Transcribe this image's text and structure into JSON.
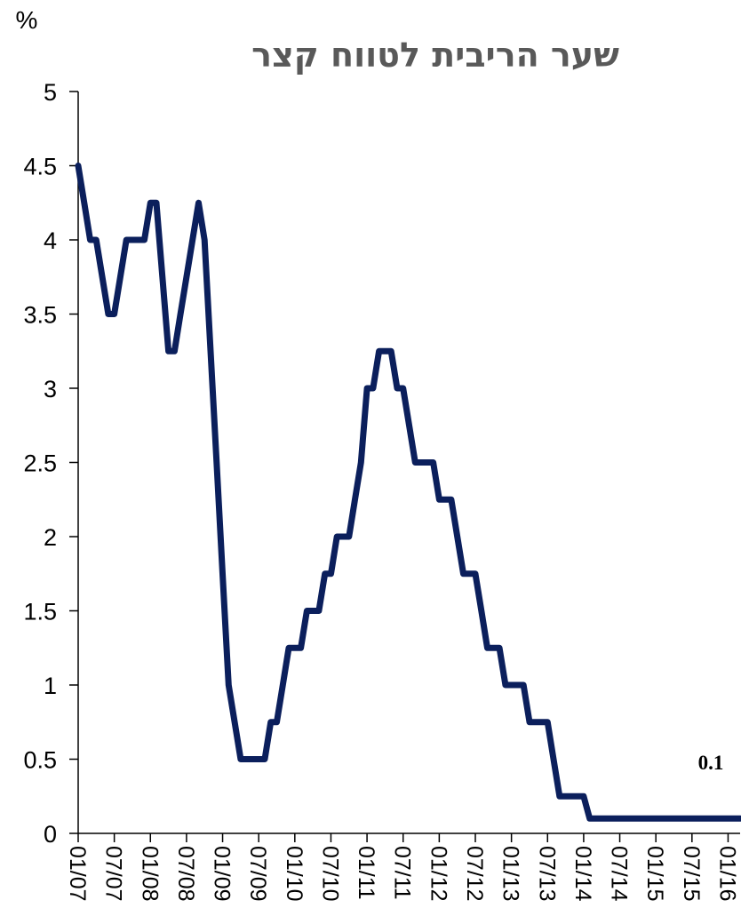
{
  "chart_data": {
    "type": "line",
    "title": "שער הריבית לטווח קצר",
    "ylabel": "%",
    "xlabel": "",
    "ylim": [
      0,
      5
    ],
    "y_ticks": [
      "0",
      "0.5",
      "1",
      "1.5",
      "2",
      "2.5",
      "3",
      "3.5",
      "4",
      "4.5",
      "5"
    ],
    "x_ticks": [
      "01/07",
      "07/07",
      "01/08",
      "07/08",
      "01/09",
      "07/09",
      "01/10",
      "07/10",
      "01/11",
      "07/11",
      "01/12",
      "07/12",
      "01/13",
      "07/13",
      "01/14",
      "07/14",
      "01/15",
      "07/15",
      "01/16"
    ],
    "x_range": [
      "2007-01",
      "2016-03"
    ],
    "grid": false,
    "line_color": "#0b1f5c",
    "annotation": "0.1",
    "series": [
      {
        "points": [
          [
            "2007-01",
            4.5
          ],
          [
            "2007-02",
            4.25
          ],
          [
            "2007-03",
            4.0
          ],
          [
            "2007-04",
            4.0
          ],
          [
            "2007-05",
            3.75
          ],
          [
            "2007-06",
            3.5
          ],
          [
            "2007-07",
            3.5
          ],
          [
            "2007-08",
            3.75
          ],
          [
            "2007-09",
            4.0
          ],
          [
            "2007-12",
            4.0
          ],
          [
            "2008-01",
            4.25
          ],
          [
            "2008-02",
            4.25
          ],
          [
            "2008-03",
            3.75
          ],
          [
            "2008-04",
            3.25
          ],
          [
            "2008-05",
            3.25
          ],
          [
            "2008-06",
            3.5
          ],
          [
            "2008-07",
            3.75
          ],
          [
            "2008-08",
            4.0
          ],
          [
            "2008-09",
            4.25
          ],
          [
            "2008-10",
            4.0
          ],
          [
            "2008-11",
            3.25
          ],
          [
            "2008-12",
            2.5
          ],
          [
            "2009-01",
            1.75
          ],
          [
            "2009-02",
            1.0
          ],
          [
            "2009-03",
            0.75
          ],
          [
            "2009-04",
            0.5
          ],
          [
            "2009-08",
            0.5
          ],
          [
            "2009-09",
            0.75
          ],
          [
            "2009-10",
            0.75
          ],
          [
            "2009-11",
            1.0
          ],
          [
            "2009-12",
            1.25
          ],
          [
            "2010-01",
            1.25
          ],
          [
            "2010-02",
            1.25
          ],
          [
            "2010-03",
            1.5
          ],
          [
            "2010-05",
            1.5
          ],
          [
            "2010-06",
            1.75
          ],
          [
            "2010-07",
            1.75
          ],
          [
            "2010-08",
            2.0
          ],
          [
            "2010-10",
            2.0
          ],
          [
            "2010-11",
            2.25
          ],
          [
            "2010-12",
            2.5
          ],
          [
            "2011-01",
            3.0
          ],
          [
            "2011-02",
            3.0
          ],
          [
            "2011-03",
            3.25
          ],
          [
            "2011-05",
            3.25
          ],
          [
            "2011-06",
            3.0
          ],
          [
            "2011-07",
            3.0
          ],
          [
            "2011-08",
            2.75
          ],
          [
            "2011-09",
            2.5
          ],
          [
            "2011-12",
            2.5
          ],
          [
            "2012-01",
            2.25
          ],
          [
            "2012-03",
            2.25
          ],
          [
            "2012-04",
            2.0
          ],
          [
            "2012-05",
            1.75
          ],
          [
            "2012-07",
            1.75
          ],
          [
            "2012-08",
            1.5
          ],
          [
            "2012-09",
            1.25
          ],
          [
            "2012-11",
            1.25
          ],
          [
            "2012-12",
            1.0
          ],
          [
            "2013-03",
            1.0
          ],
          [
            "2013-04",
            0.75
          ],
          [
            "2013-07",
            0.75
          ],
          [
            "2013-08",
            0.5
          ],
          [
            "2013-09",
            0.25
          ],
          [
            "2014-01",
            0.25
          ],
          [
            "2014-02",
            0.1
          ],
          [
            "2016-03",
            0.1
          ]
        ]
      }
    ]
  }
}
